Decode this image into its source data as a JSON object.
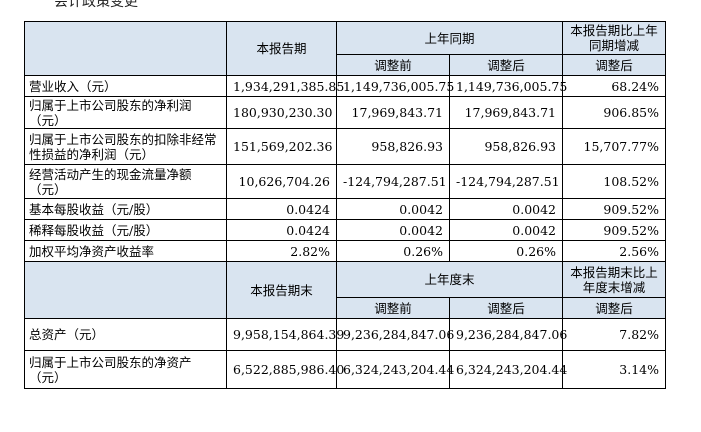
{
  "top_text": "会计政策变更",
  "section1": {
    "col_current": "本报告期",
    "col_prior": "上年同期",
    "col_change": "本报告期比上年同期增减",
    "sub_before": "调整前",
    "sub_after": "调整后",
    "sub_change": "调整后",
    "rows": [
      {
        "label": "营业收入（元）",
        "current": "1,934,291,385.85",
        "before": "1,149,736,005.75",
        "after": "1,149,736,005.75",
        "change": "68.24%"
      },
      {
        "label": "归属于上市公司股东的净利润（元）",
        "current": "180,930,230.30",
        "before": "17,969,843.71",
        "after": "17,969,843.71",
        "change": "906.85%"
      },
      {
        "label": "归属于上市公司股东的扣除非经常性损益的净利润（元）",
        "current": "151,569,202.36",
        "before": "958,826.93",
        "after": "958,826.93",
        "change": "15,707.77%"
      },
      {
        "label": "经营活动产生的现金流量净额（元）",
        "current": "10,626,704.26",
        "before": "-124,794,287.51",
        "after": "-124,794,287.51",
        "change": "108.52%"
      },
      {
        "label": "基本每股收益（元/股）",
        "current": "0.0424",
        "before": "0.0042",
        "after": "0.0042",
        "change": "909.52%"
      },
      {
        "label": "稀释每股收益（元/股）",
        "current": "0.0424",
        "before": "0.0042",
        "after": "0.0042",
        "change": "909.52%"
      },
      {
        "label": "加权平均净资产收益率",
        "current": "2.82%",
        "before": "0.26%",
        "after": "0.26%",
        "change": "2.56%"
      }
    ]
  },
  "section2": {
    "col_current": "本报告期末",
    "col_prior": "上年度末",
    "col_change": "本报告期末比上年度末增减",
    "sub_before": "调整前",
    "sub_after": "调整后",
    "sub_change": "调整后",
    "rows": [
      {
        "label": "总资产（元）",
        "current": "9,958,154,864.39",
        "before": "9,236,284,847.06",
        "after": "9,236,284,847.06",
        "change": "7.82%"
      },
      {
        "label": "归属于上市公司股东的净资产（元）",
        "current": "6,522,885,986.40",
        "before": "6,324,243,204.44",
        "after": "6,324,243,204.44",
        "change": "3.14%"
      }
    ]
  }
}
